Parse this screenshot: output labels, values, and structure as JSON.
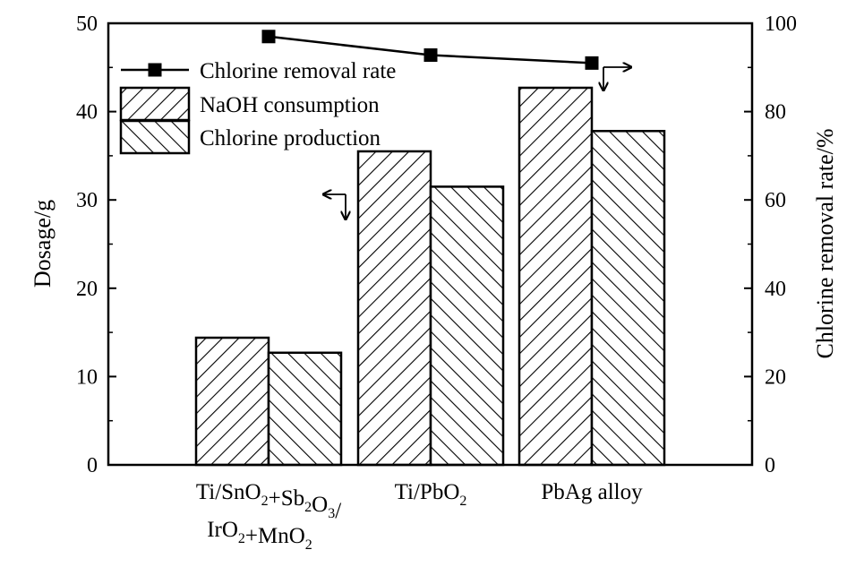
{
  "chart_data": {
    "type": "bar",
    "categories": [
      {
        "parts": [
          {
            "t": "Ti/SnO"
          },
          {
            "t": "2",
            "sub": true
          },
          {
            "t": "+Sb"
          },
          {
            "t": "2",
            "sub": true
          },
          {
            "t": "O"
          },
          {
            "t": "3",
            "sub": true
          },
          {
            "t": "/"
          }
        ],
        "line2": [
          {
            "t": "IrO"
          },
          {
            "t": "2",
            "sub": true
          },
          {
            "t": "+MnO"
          },
          {
            "t": "2",
            "sub": true
          }
        ]
      },
      {
        "parts": [
          {
            "t": "Ti/PbO"
          },
          {
            "t": "2",
            "sub": true
          }
        ]
      },
      {
        "parts": [
          {
            "t": "PbAg alloy"
          }
        ]
      }
    ],
    "series": [
      {
        "name": "NaOH consumption",
        "kind": "bar",
        "axis": "left",
        "values": [
          14.4,
          35.5,
          42.7
        ],
        "hatch": "forward"
      },
      {
        "name": "Chlorine production",
        "kind": "bar",
        "axis": "left",
        "values": [
          12.7,
          31.5,
          37.8
        ],
        "hatch": "backward"
      },
      {
        "name": "Chlorine removal rate",
        "kind": "line",
        "axis": "right",
        "values": [
          97.0,
          92.8,
          91.0
        ]
      }
    ],
    "ylabel": "Dosage/g",
    "y2label": "Chlorine removal rate/%",
    "ylim": [
      0,
      50
    ],
    "y2lim": [
      0,
      100
    ],
    "yticks": [
      0,
      10,
      20,
      30,
      40,
      50
    ],
    "y2ticks": [
      0,
      20,
      40,
      60,
      80,
      100
    ],
    "legend_position": "top-left",
    "legend_order": [
      "Chlorine removal rate",
      "NaOH consumption",
      "Chlorine production"
    ],
    "grid": false,
    "colors": {
      "line": "#000000",
      "bar_fill": "#ffffff",
      "bar_edge": "#000000"
    }
  }
}
